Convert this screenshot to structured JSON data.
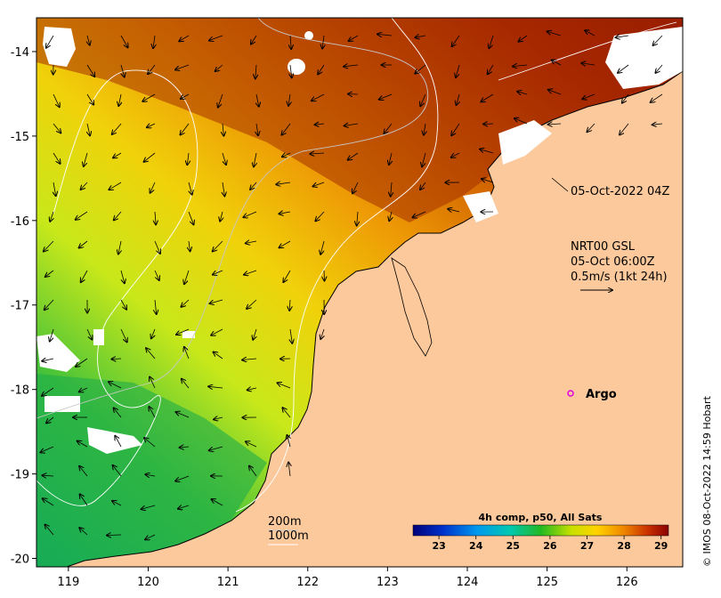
{
  "map": {
    "x_ticks": [
      "119",
      "120",
      "121",
      "122",
      "123",
      "124",
      "125",
      "126"
    ],
    "y_ticks": [
      "-14",
      "-15",
      "-16",
      "-17",
      "-18",
      "-19",
      "-20"
    ],
    "lon_range": [
      118.6,
      126.7
    ],
    "lat_range": [
      -20.1,
      -13.6
    ]
  },
  "annotations": {
    "image_time": "05-Oct-2022 04Z",
    "currents_line1": "NRT00 GSL",
    "currents_line2": "05-Oct 06:00Z",
    "currents_line3": "0.5m/s (1kt 24h)",
    "argo_label": "Argo",
    "contour_200": "200m",
    "contour_1000": "1000m"
  },
  "colorbar": {
    "title": "4h comp, p50, All Sats",
    "labels": [
      "23",
      "24",
      "25",
      "26",
      "27",
      "28",
      "29"
    ],
    "range": [
      22.3,
      29.2
    ]
  },
  "credit": "© IMOS 08-Oct-2022 14:59 Hobart",
  "colors": {
    "land": "#fcc99c",
    "argo_marker": "#e000e0"
  }
}
